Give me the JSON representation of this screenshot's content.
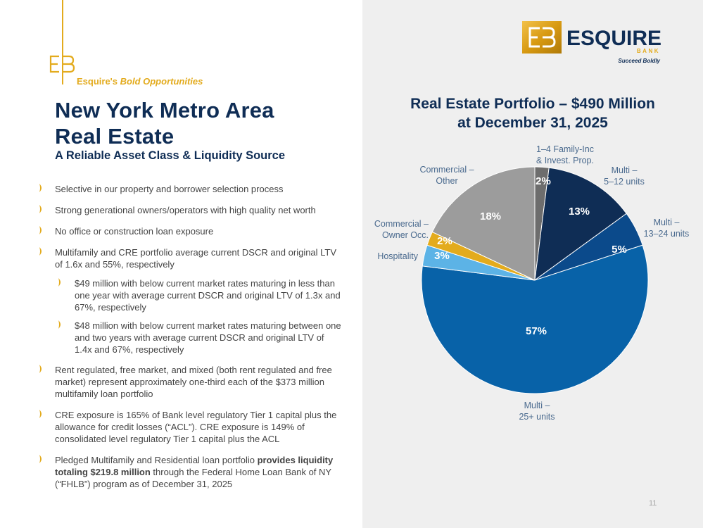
{
  "branding": {
    "tagline_prefix": "Esquire's",
    "tagline_emphasis": "Bold Opportunities",
    "logo_name": "ESQUIRE",
    "logo_sub": "BANK",
    "logo_slogan": "Succeed Boldly",
    "gold_color": "#e3ab1d",
    "navy_color": "#0f2d55"
  },
  "slide": {
    "title_line1": "New York Metro Area",
    "title_line2": "Real Estate",
    "subtitle": "A Reliable Asset Class & Liquidity Source",
    "page_number": "11"
  },
  "bullets": [
    {
      "text": "Selective in our property and borrower selection process"
    },
    {
      "text": "Strong generational owners/operators with high quality net worth"
    },
    {
      "text": "No office or construction loan exposure"
    },
    {
      "text": "Multifamily and CRE portfolio average current DSCR and original LTV of 1.6x and 55%, respectively"
    },
    {
      "text": "Rent regulated, free market, and mixed (both rent regulated and free market) represent approximately one-third each of the $373 million multifamily loan portfolio"
    },
    {
      "text": "CRE exposure is 165% of Bank level regulatory Tier 1 capital plus the allowance for credit losses (“ACL”). CRE exposure is 149% of consolidated level regulatory Tier 1 capital plus the ACL"
    },
    {
      "text_before": "Pledged Multifamily and Residential loan portfolio ",
      "text_bold": "provides liquidity totaling $219.8 million",
      "text_after": " through the Federal Home Loan Bank of NY (“FHLB”) program as of December 31, 2025"
    }
  ],
  "sub_bullets": [
    {
      "text": "$49 million with below current market rates maturing in less than one year with average current DSCR and original LTV of 1.3x and 67%, respectively"
    },
    {
      "text": "$48 million with below current market rates maturing between one and two years with average current DSCR and original LTV of 1.4x and 67%, respectively"
    }
  ],
  "chart_data": {
    "type": "pie",
    "title_line1": "Real Estate Portfolio – $490 Million",
    "title_line2": "at December 31, 2025",
    "unit": "%",
    "slices": [
      {
        "label_lines": [
          "1–4 Family-Inc",
          "& Invest. Prop."
        ],
        "value": 2,
        "display": "2%",
        "color": "#6d6d6d"
      },
      {
        "label_lines": [
          "Multi –",
          "5–12 units"
        ],
        "value": 13,
        "display": "13%",
        "color": "#0f2d55"
      },
      {
        "label_lines": [
          "Multi –",
          "13–24 units"
        ],
        "value": 5,
        "display": "5%",
        "color": "#0b4a8b"
      },
      {
        "label_lines": [
          "Multi –",
          "25+ units"
        ],
        "value": 57,
        "display": "57%",
        "color": "#0862a8"
      },
      {
        "label_lines": [
          "Hospitality"
        ],
        "value": 3,
        "display": "3%",
        "color": "#5cb3e6"
      },
      {
        "label_lines": [
          "Commercial –",
          "Owner Occ."
        ],
        "value": 2,
        "display": "2%",
        "color": "#e3ab1d"
      },
      {
        "label_lines": [
          "Commercial –",
          "Other"
        ],
        "value": 18,
        "display": "18%",
        "color": "#9c9c9c"
      }
    ]
  }
}
